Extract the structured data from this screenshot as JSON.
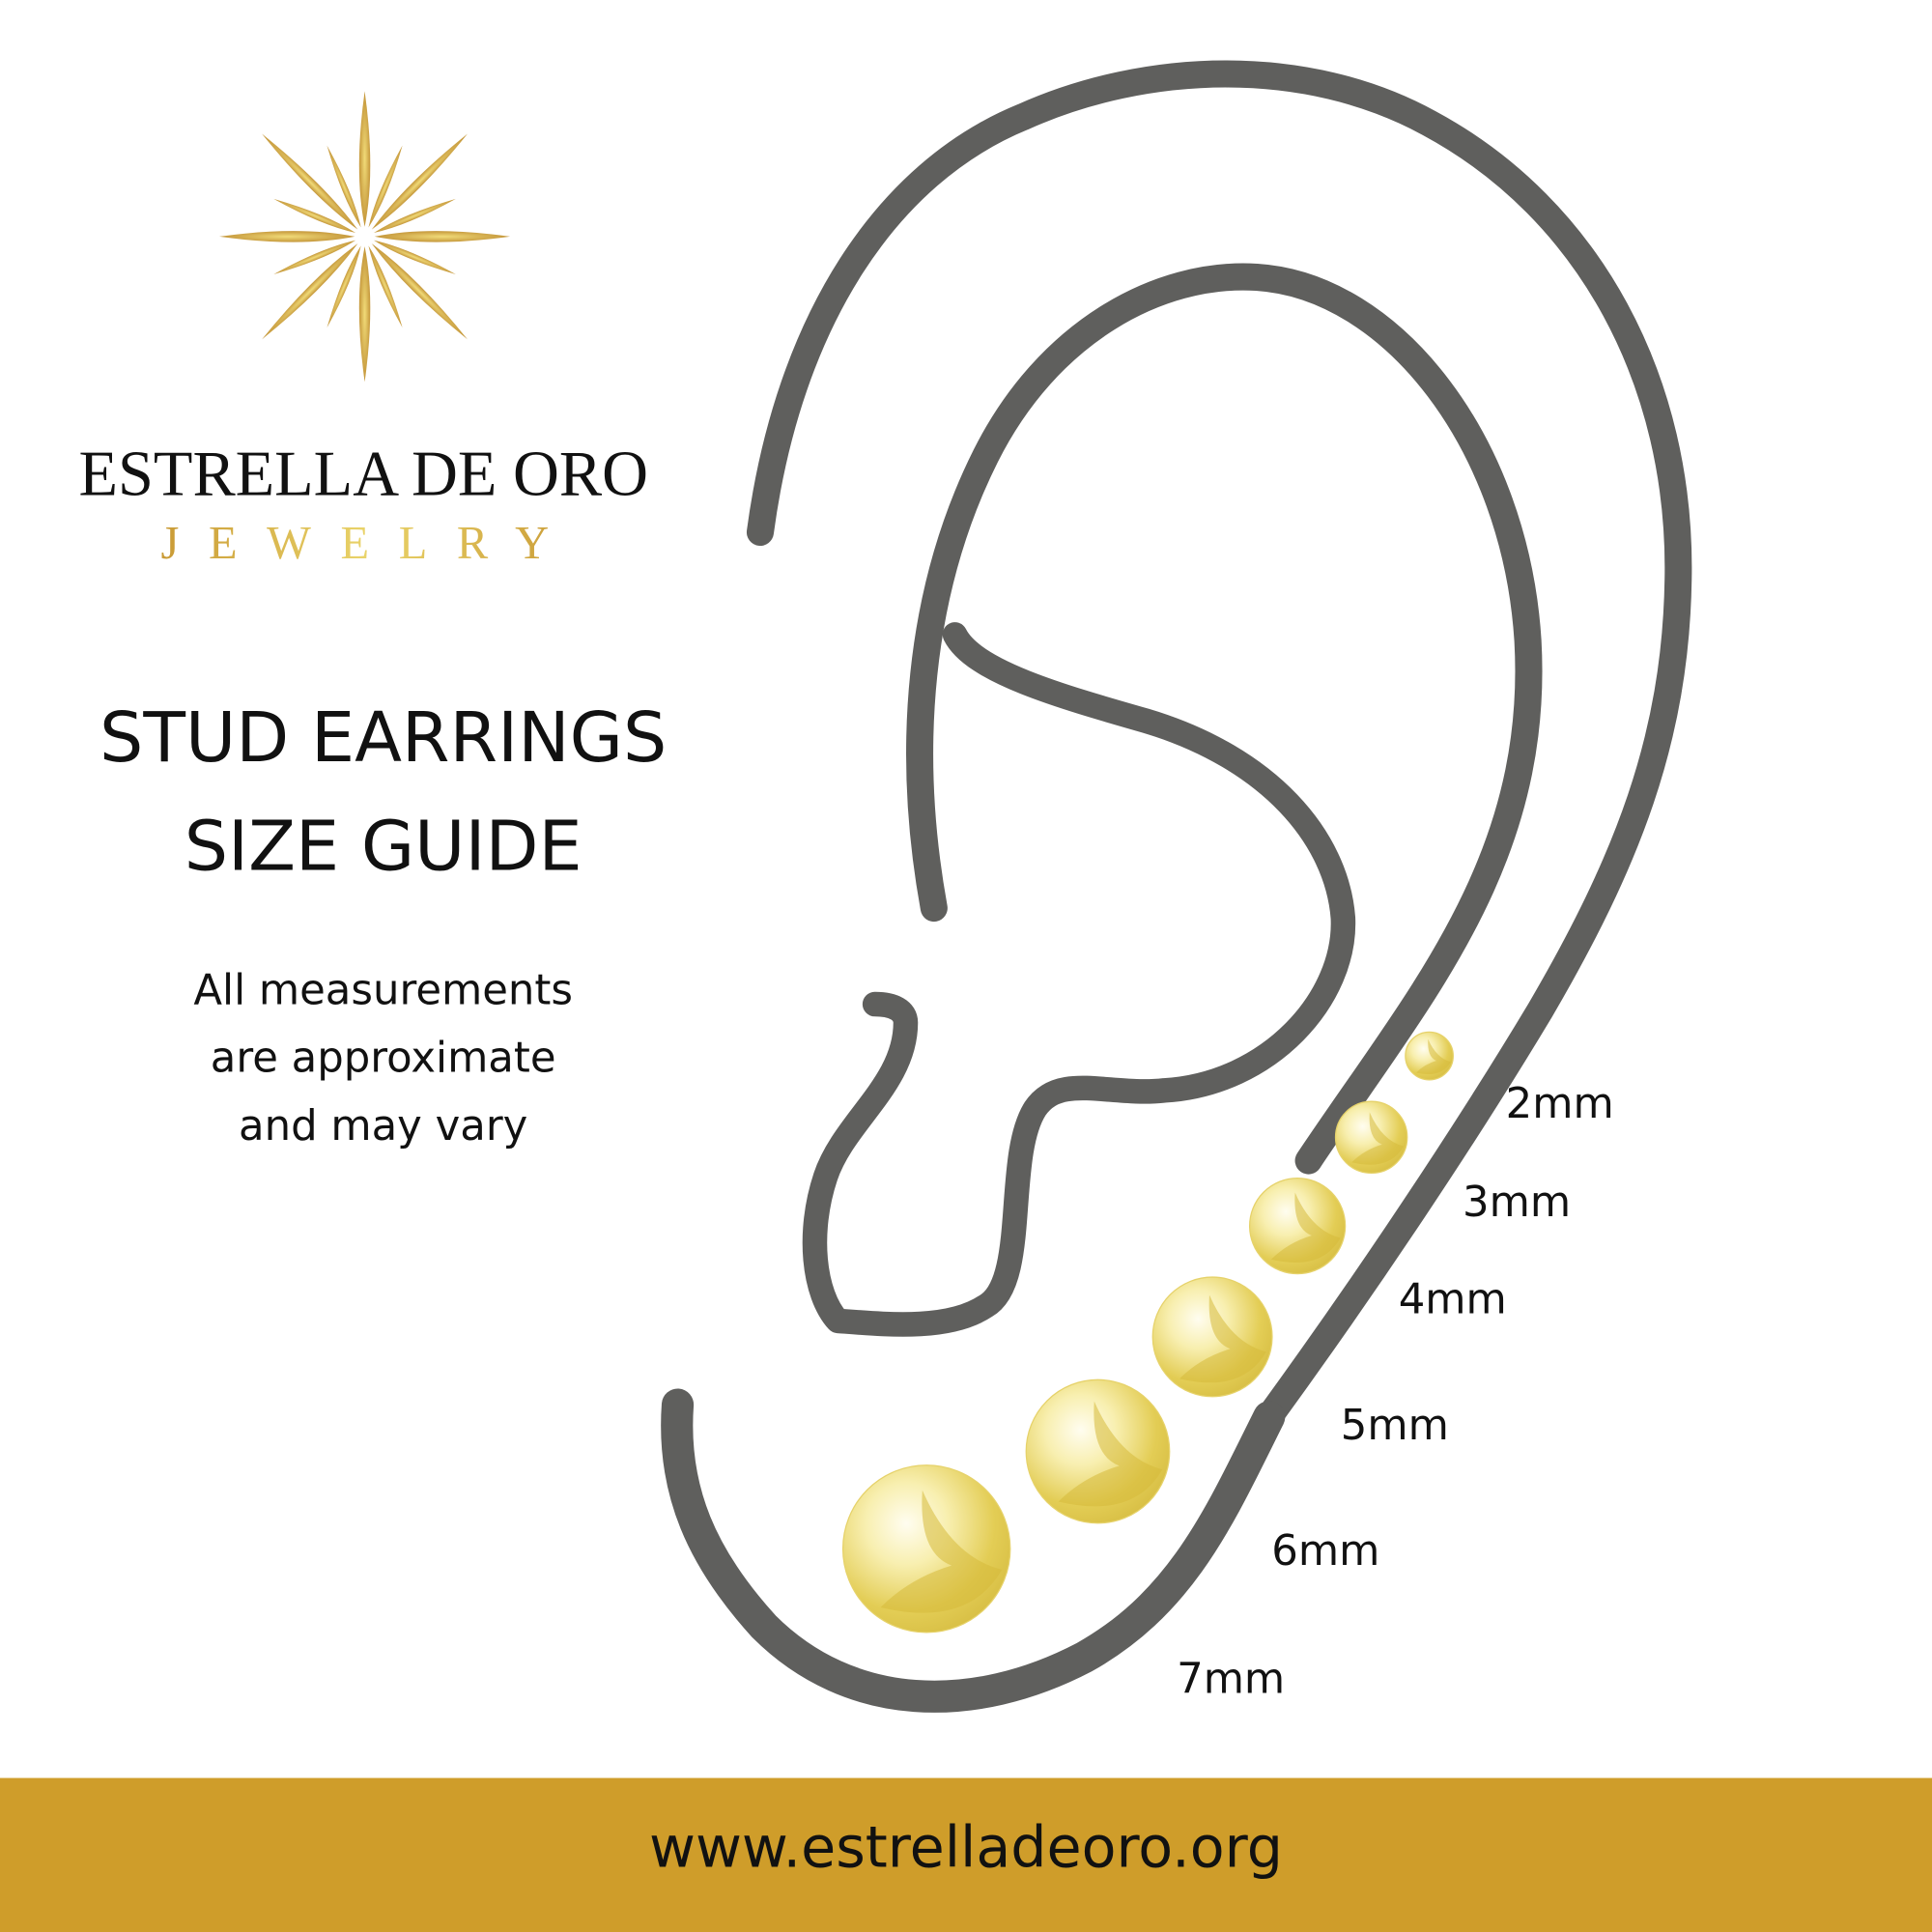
{
  "brand": {
    "name": "ESTRELLA DE ORO",
    "tagline": "JEWELRY",
    "logo_icon": "gold-star-burst-icon",
    "gold_color": "#d4a93c"
  },
  "heading": {
    "line1": "STUD EARRINGS",
    "line2": "SIZE GUIDE"
  },
  "note": {
    "line1": "All measurements",
    "line2": "are approximate",
    "line3": "and may vary"
  },
  "sizes": [
    {
      "label": "2mm",
      "mm": 2
    },
    {
      "label": "3mm",
      "mm": 3
    },
    {
      "label": "4mm",
      "mm": 4
    },
    {
      "label": "5mm",
      "mm": 5
    },
    {
      "label": "6mm",
      "mm": 6
    },
    {
      "label": "7mm",
      "mm": 7
    }
  ],
  "footer": {
    "url": "www.estrelladeoro.org",
    "bar_color": "#cf9d2a"
  },
  "colors": {
    "ear_outline": "#5f5f5d",
    "stud_gold": "#e8d25a"
  }
}
